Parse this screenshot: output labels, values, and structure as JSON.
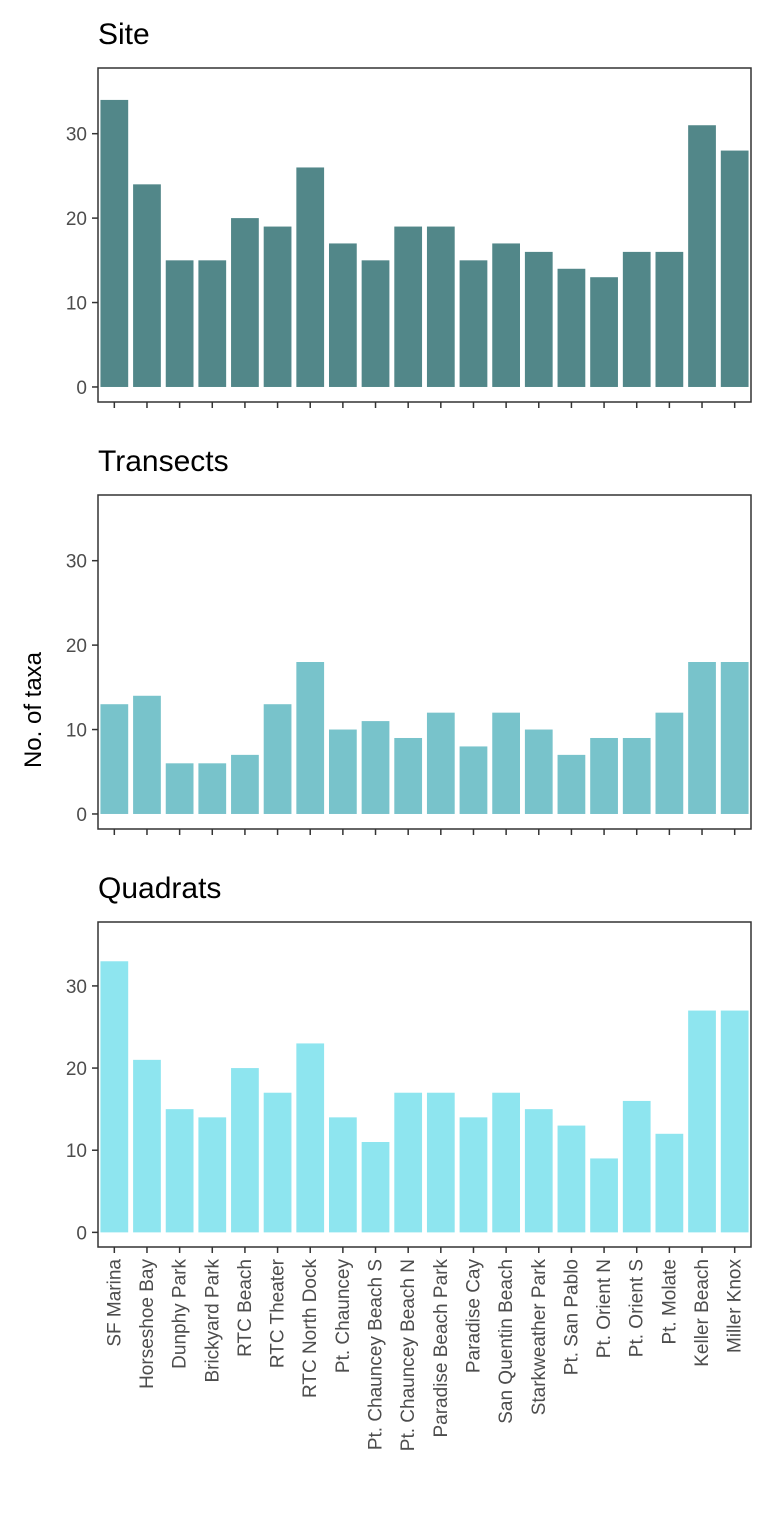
{
  "chart_data": {
    "type": "bar",
    "layout": "faceted-vertical",
    "ylabel": "No. of taxa",
    "xlabel": "",
    "ylim": [
      0,
      36
    ],
    "yticks": [
      0,
      10,
      20,
      30
    ],
    "grid": false,
    "categories": [
      "SF Marina",
      "Horseshoe Bay",
      "Dunphy Park",
      "Brickyard Park",
      "RTC Beach",
      "RTC Theater",
      "RTC North Dock",
      "Pt. Chauncey",
      "Pt. Chauncey Beach S",
      "Pt. Chauncey Beach N",
      "Paradise Beach Park",
      "Paradise Cay",
      "San Quentin Beach",
      "Starkweather Park",
      "Pt. San Pablo",
      "Pt. Orient N",
      "Pt. Orient S",
      "Pt. Molate",
      "Keller Beach",
      "Miller Knox"
    ],
    "series": [
      {
        "name": "Site",
        "color": "#528789",
        "values": [
          34,
          24,
          15,
          15,
          20,
          19,
          26,
          17,
          15,
          19,
          19,
          15,
          17,
          16,
          14,
          13,
          16,
          16,
          31,
          28
        ]
      },
      {
        "name": "Transects",
        "color": "#78c3cb",
        "values": [
          13,
          14,
          6,
          6,
          7,
          13,
          18,
          10,
          11,
          9,
          12,
          8,
          12,
          10,
          7,
          9,
          9,
          12,
          18,
          18
        ]
      },
      {
        "name": "Quadrats",
        "color": "#8ee5ef",
        "values": [
          33,
          21,
          15,
          14,
          20,
          17,
          23,
          14,
          11,
          17,
          17,
          14,
          17,
          15,
          13,
          9,
          16,
          12,
          27,
          27
        ]
      }
    ]
  }
}
